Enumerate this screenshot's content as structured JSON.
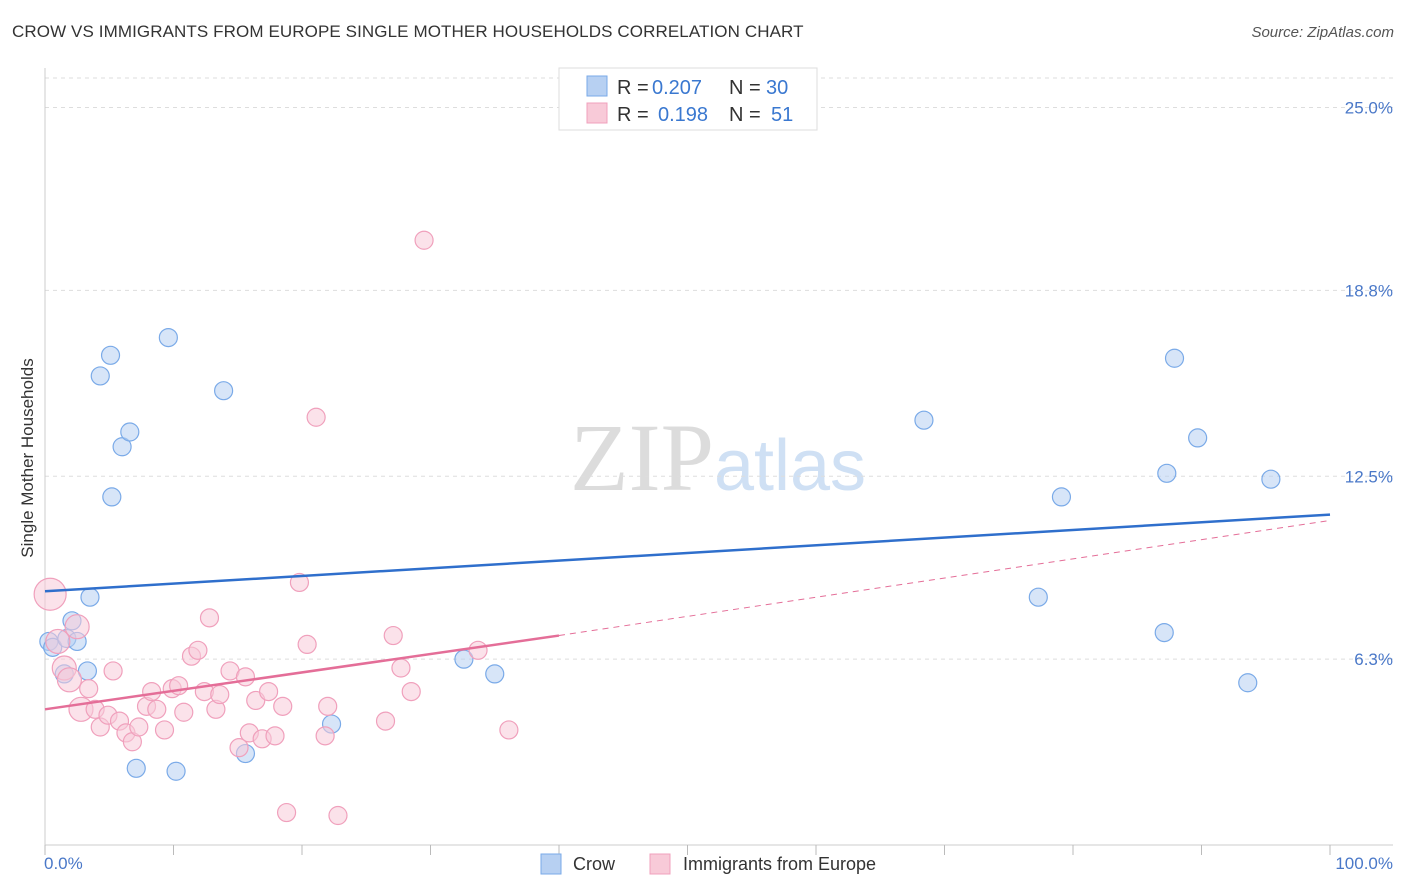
{
  "chart_data": {
    "type": "scatter",
    "title": "CROW VS IMMIGRANTS FROM EUROPE SINGLE MOTHER HOUSEHOLDS CORRELATION CHART",
    "source": "Source: ZipAtlas.com",
    "watermark": "ZIPatlas",
    "xlabel": "",
    "ylabel": "Single Mother Households",
    "xlim": [
      0,
      100
    ],
    "ylim": [
      0,
      26
    ],
    "x_tick_labels": [
      "0.0%",
      "100.0%"
    ],
    "y_ticks": [
      {
        "value": 6.3,
        "label": "6.3%"
      },
      {
        "value": 12.5,
        "label": "12.5%"
      },
      {
        "value": 18.8,
        "label": "18.8%"
      },
      {
        "value": 25.0,
        "label": "25.0%"
      }
    ],
    "legend": {
      "rows": [
        {
          "r_label": "R =",
          "r_value": "0.207",
          "n_label": "N =",
          "n_value": "30"
        },
        {
          "r_label": "R =",
          "r_value": "0.198",
          "n_label": "N =",
          "n_value": "51"
        }
      ]
    },
    "series": [
      {
        "name": "Crow",
        "color": "#7aaae8",
        "fill": "#b7d0f2",
        "trend": {
          "x": [
            0,
            100
          ],
          "y": [
            8.6,
            11.2
          ],
          "style": "solid",
          "color": "#2f6fcc"
        },
        "points": [
          [
            0.3,
            6.9
          ],
          [
            0.6,
            6.7
          ],
          [
            1.5,
            5.8
          ],
          [
            1.7,
            7.0
          ],
          [
            2.1,
            7.6
          ],
          [
            2.5,
            6.9
          ],
          [
            3.3,
            5.9
          ],
          [
            3.5,
            8.4
          ],
          [
            4.3,
            15.9
          ],
          [
            5.1,
            16.6
          ],
          [
            5.2,
            11.8
          ],
          [
            6.0,
            13.5
          ],
          [
            6.6,
            14.0
          ],
          [
            7.1,
            2.6
          ],
          [
            9.6,
            17.2
          ],
          [
            10.2,
            2.5
          ],
          [
            13.9,
            15.4
          ],
          [
            15.6,
            3.1
          ],
          [
            22.3,
            4.1
          ],
          [
            32.6,
            6.3
          ],
          [
            35.0,
            5.8
          ],
          [
            68.4,
            14.4
          ],
          [
            77.3,
            8.4
          ],
          [
            79.1,
            11.8
          ],
          [
            87.1,
            7.2
          ],
          [
            87.3,
            12.6
          ],
          [
            87.9,
            16.5
          ],
          [
            89.7,
            13.8
          ],
          [
            93.6,
            5.5
          ],
          [
            95.4,
            12.4
          ]
        ]
      },
      {
        "name": "Immigrants from Europe",
        "color": "#f0a0bc",
        "fill": "#f8cad8",
        "trend": {
          "x": [
            0,
            40
          ],
          "y": [
            4.6,
            7.1
          ],
          "style": "solid",
          "color": "#e46e98",
          "ext_x": [
            40,
            100
          ],
          "ext_y": [
            7.1,
            11.0
          ],
          "ext_style": "dashed"
        },
        "points": [
          [
            0.4,
            8.5
          ],
          [
            1.0,
            6.9
          ],
          [
            1.5,
            6.0
          ],
          [
            1.9,
            5.6
          ],
          [
            2.5,
            7.4
          ],
          [
            2.8,
            4.6
          ],
          [
            3.4,
            5.3
          ],
          [
            3.9,
            4.6
          ],
          [
            4.3,
            4.0
          ],
          [
            4.9,
            4.4
          ],
          [
            5.3,
            5.9
          ],
          [
            5.8,
            4.2
          ],
          [
            6.3,
            3.8
          ],
          [
            6.8,
            3.5
          ],
          [
            7.3,
            4.0
          ],
          [
            7.9,
            4.7
          ],
          [
            8.3,
            5.2
          ],
          [
            8.7,
            4.6
          ],
          [
            9.3,
            3.9
          ],
          [
            9.9,
            5.3
          ],
          [
            10.4,
            5.4
          ],
          [
            10.8,
            4.5
          ],
          [
            11.4,
            6.4
          ],
          [
            11.9,
            6.6
          ],
          [
            12.4,
            5.2
          ],
          [
            12.8,
            7.7
          ],
          [
            13.3,
            4.6
          ],
          [
            13.6,
            5.1
          ],
          [
            14.4,
            5.9
          ],
          [
            15.1,
            3.3
          ],
          [
            15.6,
            5.7
          ],
          [
            15.9,
            3.8
          ],
          [
            16.4,
            4.9
          ],
          [
            16.9,
            3.6
          ],
          [
            17.4,
            5.2
          ],
          [
            17.9,
            3.7
          ],
          [
            18.5,
            4.7
          ],
          [
            18.8,
            1.1
          ],
          [
            19.8,
            8.9
          ],
          [
            20.4,
            6.8
          ],
          [
            21.1,
            14.5
          ],
          [
            21.8,
            3.7
          ],
          [
            22.0,
            4.7
          ],
          [
            22.8,
            1.0
          ],
          [
            26.5,
            4.2
          ],
          [
            27.1,
            7.1
          ],
          [
            27.7,
            6.0
          ],
          [
            28.5,
            5.2
          ],
          [
            29.5,
            20.5
          ],
          [
            33.7,
            6.6
          ],
          [
            36.1,
            3.9
          ]
        ]
      }
    ]
  }
}
